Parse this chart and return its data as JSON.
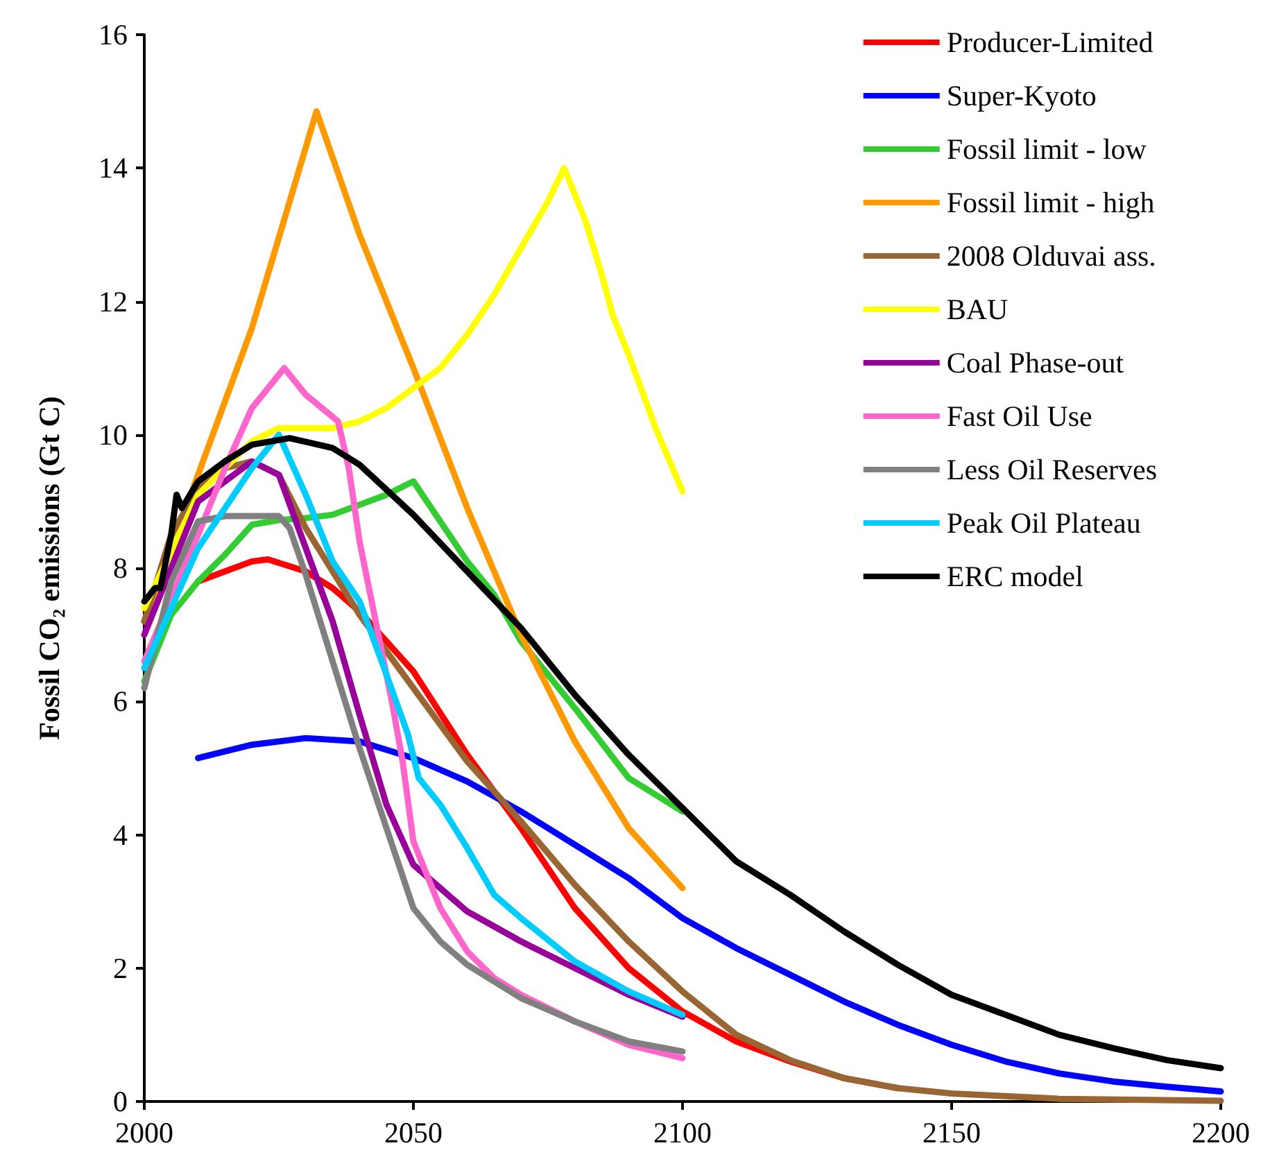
{
  "chart_data": {
    "type": "line",
    "ylabel": "Fossil CO₂ emissions (Gt C)",
    "xlim": [
      2000,
      2200
    ],
    "xticks": [
      2000,
      2050,
      2100,
      2150,
      2200
    ],
    "ylim": [
      0,
      16
    ],
    "yticks": [
      0,
      2,
      4,
      6,
      8,
      10,
      12,
      14,
      16
    ],
    "grid": false,
    "legend": "top right",
    "marker": "none",
    "line_style": "solid",
    "series": [
      {
        "name": "Producer-Limited",
        "color": "#ff0000",
        "x": [
          2010,
          2015,
          2020,
          2023,
          2030,
          2035,
          2040,
          2050,
          2060,
          2070,
          2080,
          2090,
          2100,
          2110,
          2120,
          2130,
          2140
        ],
        "values": [
          7.8,
          7.95,
          8.1,
          8.13,
          7.95,
          7.7,
          7.35,
          6.45,
          5.2,
          4.1,
          2.9,
          2.0,
          1.35,
          0.9,
          0.6,
          0.35,
          0.2
        ]
      },
      {
        "name": "Super-Kyoto",
        "color": "#0000ff",
        "x": [
          2010,
          2020,
          2030,
          2040,
          2050,
          2060,
          2070,
          2080,
          2090,
          2100,
          2110,
          2120,
          2130,
          2140,
          2150,
          2160,
          2170,
          2180,
          2190,
          2200
        ],
        "values": [
          5.15,
          5.35,
          5.45,
          5.4,
          5.15,
          4.8,
          4.35,
          3.85,
          3.35,
          2.75,
          2.3,
          1.9,
          1.5,
          1.15,
          0.85,
          0.6,
          0.42,
          0.3,
          0.22,
          0.15
        ]
      },
      {
        "name": "Fossil limit - low",
        "color": "#33cc33",
        "x": [
          2000,
          2005,
          2010,
          2015,
          2020,
          2025,
          2030,
          2035,
          2040,
          2045,
          2050,
          2055,
          2060,
          2065,
          2070,
          2080,
          2090,
          2100
        ],
        "values": [
          6.3,
          7.3,
          7.8,
          8.2,
          8.65,
          8.72,
          8.75,
          8.8,
          8.95,
          9.1,
          9.3,
          8.7,
          8.1,
          7.6,
          6.9,
          5.9,
          4.85,
          4.35
        ]
      },
      {
        "name": "Fossil limit - high",
        "color": "#ff9900",
        "x": [
          2000,
          2010,
          2020,
          2032,
          2040,
          2050,
          2060,
          2070,
          2080,
          2090,
          2100
        ],
        "values": [
          7.2,
          9.4,
          11.6,
          14.85,
          13.0,
          11.0,
          8.9,
          7.0,
          5.4,
          4.1,
          3.2
        ]
      },
      {
        "name": "2008 Olduvai ass.",
        "color": "#996633",
        "x": [
          2000,
          2005,
          2010,
          2015,
          2020,
          2025,
          2030,
          2040,
          2050,
          2060,
          2070,
          2080,
          2090,
          2100,
          2110,
          2120,
          2130,
          2140,
          2150,
          2170,
          2200
        ],
        "values": [
          7.2,
          8.5,
          9.2,
          9.5,
          9.6,
          9.4,
          8.6,
          7.3,
          6.2,
          5.1,
          4.2,
          3.25,
          2.4,
          1.65,
          1.0,
          0.62,
          0.35,
          0.2,
          0.12,
          0.04,
          0.01
        ]
      },
      {
        "name": "BAU",
        "color": "#ffff00",
        "x": [
          2000,
          2010,
          2020,
          2025,
          2030,
          2035,
          2040,
          2045,
          2050,
          2055,
          2060,
          2065,
          2070,
          2075,
          2078,
          2082,
          2085,
          2087,
          2090,
          2095,
          2100
        ],
        "values": [
          7.4,
          9.1,
          9.9,
          10.1,
          10.1,
          10.1,
          10.2,
          10.4,
          10.7,
          11.0,
          11.5,
          12.1,
          12.8,
          13.5,
          14.0,
          13.2,
          12.4,
          11.8,
          11.2,
          10.1,
          9.15
        ]
      },
      {
        "name": "Coal Phase-out",
        "color": "#990099",
        "x": [
          2000,
          2010,
          2020,
          2025,
          2030,
          2035,
          2040,
          2045,
          2050,
          2060,
          2070,
          2080,
          2090,
          2100
        ],
        "values": [
          7.0,
          9.0,
          9.6,
          9.4,
          8.3,
          7.2,
          5.8,
          4.45,
          3.55,
          2.85,
          2.4,
          2.0,
          1.6,
          1.27
        ]
      },
      {
        "name": "Fast Oil Use",
        "color": "#ff66cc",
        "x": [
          2000,
          2010,
          2015,
          2020,
          2026,
          2030,
          2036,
          2038,
          2040,
          2043,
          2046,
          2048,
          2050,
          2055,
          2060,
          2065,
          2070,
          2080,
          2090,
          2100
        ],
        "values": [
          6.6,
          8.5,
          9.5,
          10.4,
          11.0,
          10.6,
          10.2,
          9.5,
          8.4,
          7.2,
          6.0,
          5.1,
          3.9,
          2.9,
          2.25,
          1.85,
          1.6,
          1.2,
          0.85,
          0.65
        ]
      },
      {
        "name": "Less Oil Reserves",
        "color": "#808080",
        "x": [
          2000,
          2005,
          2010,
          2015,
          2025,
          2027,
          2030,
          2035,
          2040,
          2045,
          2050,
          2055,
          2060,
          2070,
          2080,
          2090,
          2100
        ],
        "values": [
          6.2,
          7.8,
          8.7,
          8.78,
          8.78,
          8.6,
          7.9,
          6.6,
          5.3,
          4.1,
          2.9,
          2.4,
          2.05,
          1.55,
          1.2,
          0.9,
          0.75
        ]
      },
      {
        "name": "Peak Oil Plateau",
        "color": "#00ccff",
        "x": [
          2000,
          2010,
          2020,
          2025,
          2030,
          2035,
          2040,
          2045,
          2049,
          2051,
          2055,
          2060,
          2065,
          2070,
          2080,
          2090,
          2100
        ],
        "values": [
          6.5,
          8.3,
          9.5,
          10.0,
          9.1,
          8.1,
          7.5,
          6.4,
          5.5,
          4.85,
          4.45,
          3.8,
          3.1,
          2.75,
          2.1,
          1.65,
          1.3
        ]
      },
      {
        "name": "ERC model",
        "color": "#000000",
        "x": [
          2000,
          2002,
          2003,
          2005,
          2006,
          2007,
          2010,
          2015,
          2020,
          2027,
          2035,
          2040,
          2050,
          2060,
          2070,
          2080,
          2090,
          2100,
          2110,
          2120,
          2130,
          2140,
          2150,
          2160,
          2170,
          2180,
          2190,
          2200
        ],
        "values": [
          7.5,
          7.7,
          7.7,
          8.5,
          9.1,
          8.9,
          9.3,
          9.6,
          9.85,
          9.95,
          9.8,
          9.55,
          8.8,
          7.95,
          7.1,
          6.1,
          5.2,
          4.4,
          3.6,
          3.1,
          2.55,
          2.05,
          1.6,
          1.3,
          1.0,
          0.8,
          0.62,
          0.5
        ]
      }
    ]
  }
}
